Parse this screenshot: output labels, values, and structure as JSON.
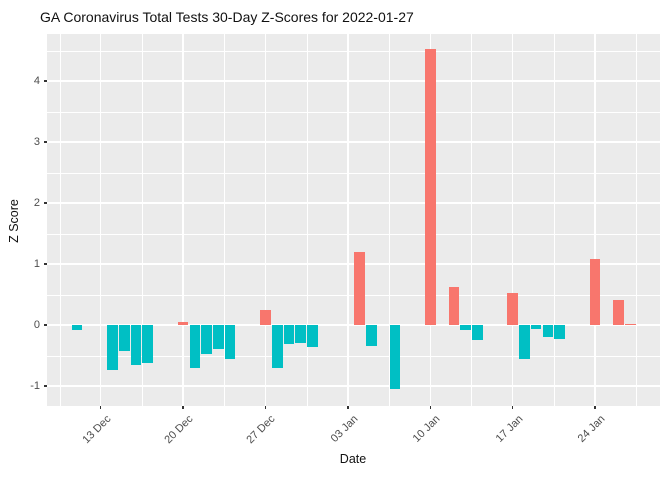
{
  "chart_data": {
    "type": "bar",
    "title": "GA Coronavirus Total Tests 30-Day Z-Scores for 2022-01-27",
    "xlabel": "Date",
    "ylabel": "Z Score",
    "ylim": [
      -1.33,
      4.81
    ],
    "yticks": [
      -1,
      0,
      1,
      2,
      3,
      4
    ],
    "grid": "white major+minor gridlines on gray panel",
    "legend_position": "none",
    "colors": {
      "positive_bar": "#F8766D",
      "negative_bar": "#00BFC4",
      "panel_background": "#EBEBEB",
      "gridline": "#ffffff",
      "axis_text": "#4D4D4D",
      "tick_mark": "#333333"
    },
    "x_tick_labels": [
      "13 Dec",
      "20 Dec",
      "27 Dec",
      "03 Jan",
      "10 Jan",
      "17 Jan",
      "24 Jan"
    ],
    "x_tick_indices": [
      4,
      11,
      18,
      25,
      32,
      39,
      46
    ],
    "dates": [
      "2021-12-09",
      "2021-12-10",
      "2021-12-11",
      "2021-12-12",
      "2021-12-13",
      "2021-12-14",
      "2021-12-15",
      "2021-12-16",
      "2021-12-17",
      "2021-12-18",
      "2021-12-19",
      "2021-12-20",
      "2021-12-21",
      "2021-12-22",
      "2021-12-23",
      "2021-12-24",
      "2021-12-25",
      "2021-12-26",
      "2021-12-27",
      "2021-12-28",
      "2021-12-29",
      "2021-12-30",
      "2021-12-31",
      "2022-01-01",
      "2022-01-02",
      "2022-01-03",
      "2022-01-04",
      "2022-01-05",
      "2022-01-06",
      "2022-01-07",
      "2022-01-08",
      "2022-01-09",
      "2022-01-10",
      "2022-01-11",
      "2022-01-12",
      "2022-01-13",
      "2022-01-14",
      "2022-01-15",
      "2022-01-16",
      "2022-01-17",
      "2022-01-18",
      "2022-01-19",
      "2022-01-20",
      "2022-01-21",
      "2022-01-22",
      "2022-01-23",
      "2022-01-24",
      "2022-01-25",
      "2022-01-26",
      "2022-01-27"
    ],
    "values": [
      0,
      0,
      -0.08,
      0,
      0,
      -0.74,
      -0.43,
      -0.66,
      -0.62,
      0,
      0,
      0.05,
      -0.71,
      -0.48,
      -0.39,
      -0.56,
      0,
      0,
      0.24,
      -0.7,
      -0.31,
      -0.3,
      -0.36,
      0,
      0,
      0,
      1.19,
      -0.34,
      0,
      -1.05,
      0,
      0,
      4.53,
      0,
      0.63,
      -0.09,
      -0.25,
      0,
      0,
      0.53,
      -0.55,
      -0.07,
      -0.2,
      -0.23,
      0,
      0,
      1.09,
      0,
      0.41,
      0.02
    ]
  }
}
